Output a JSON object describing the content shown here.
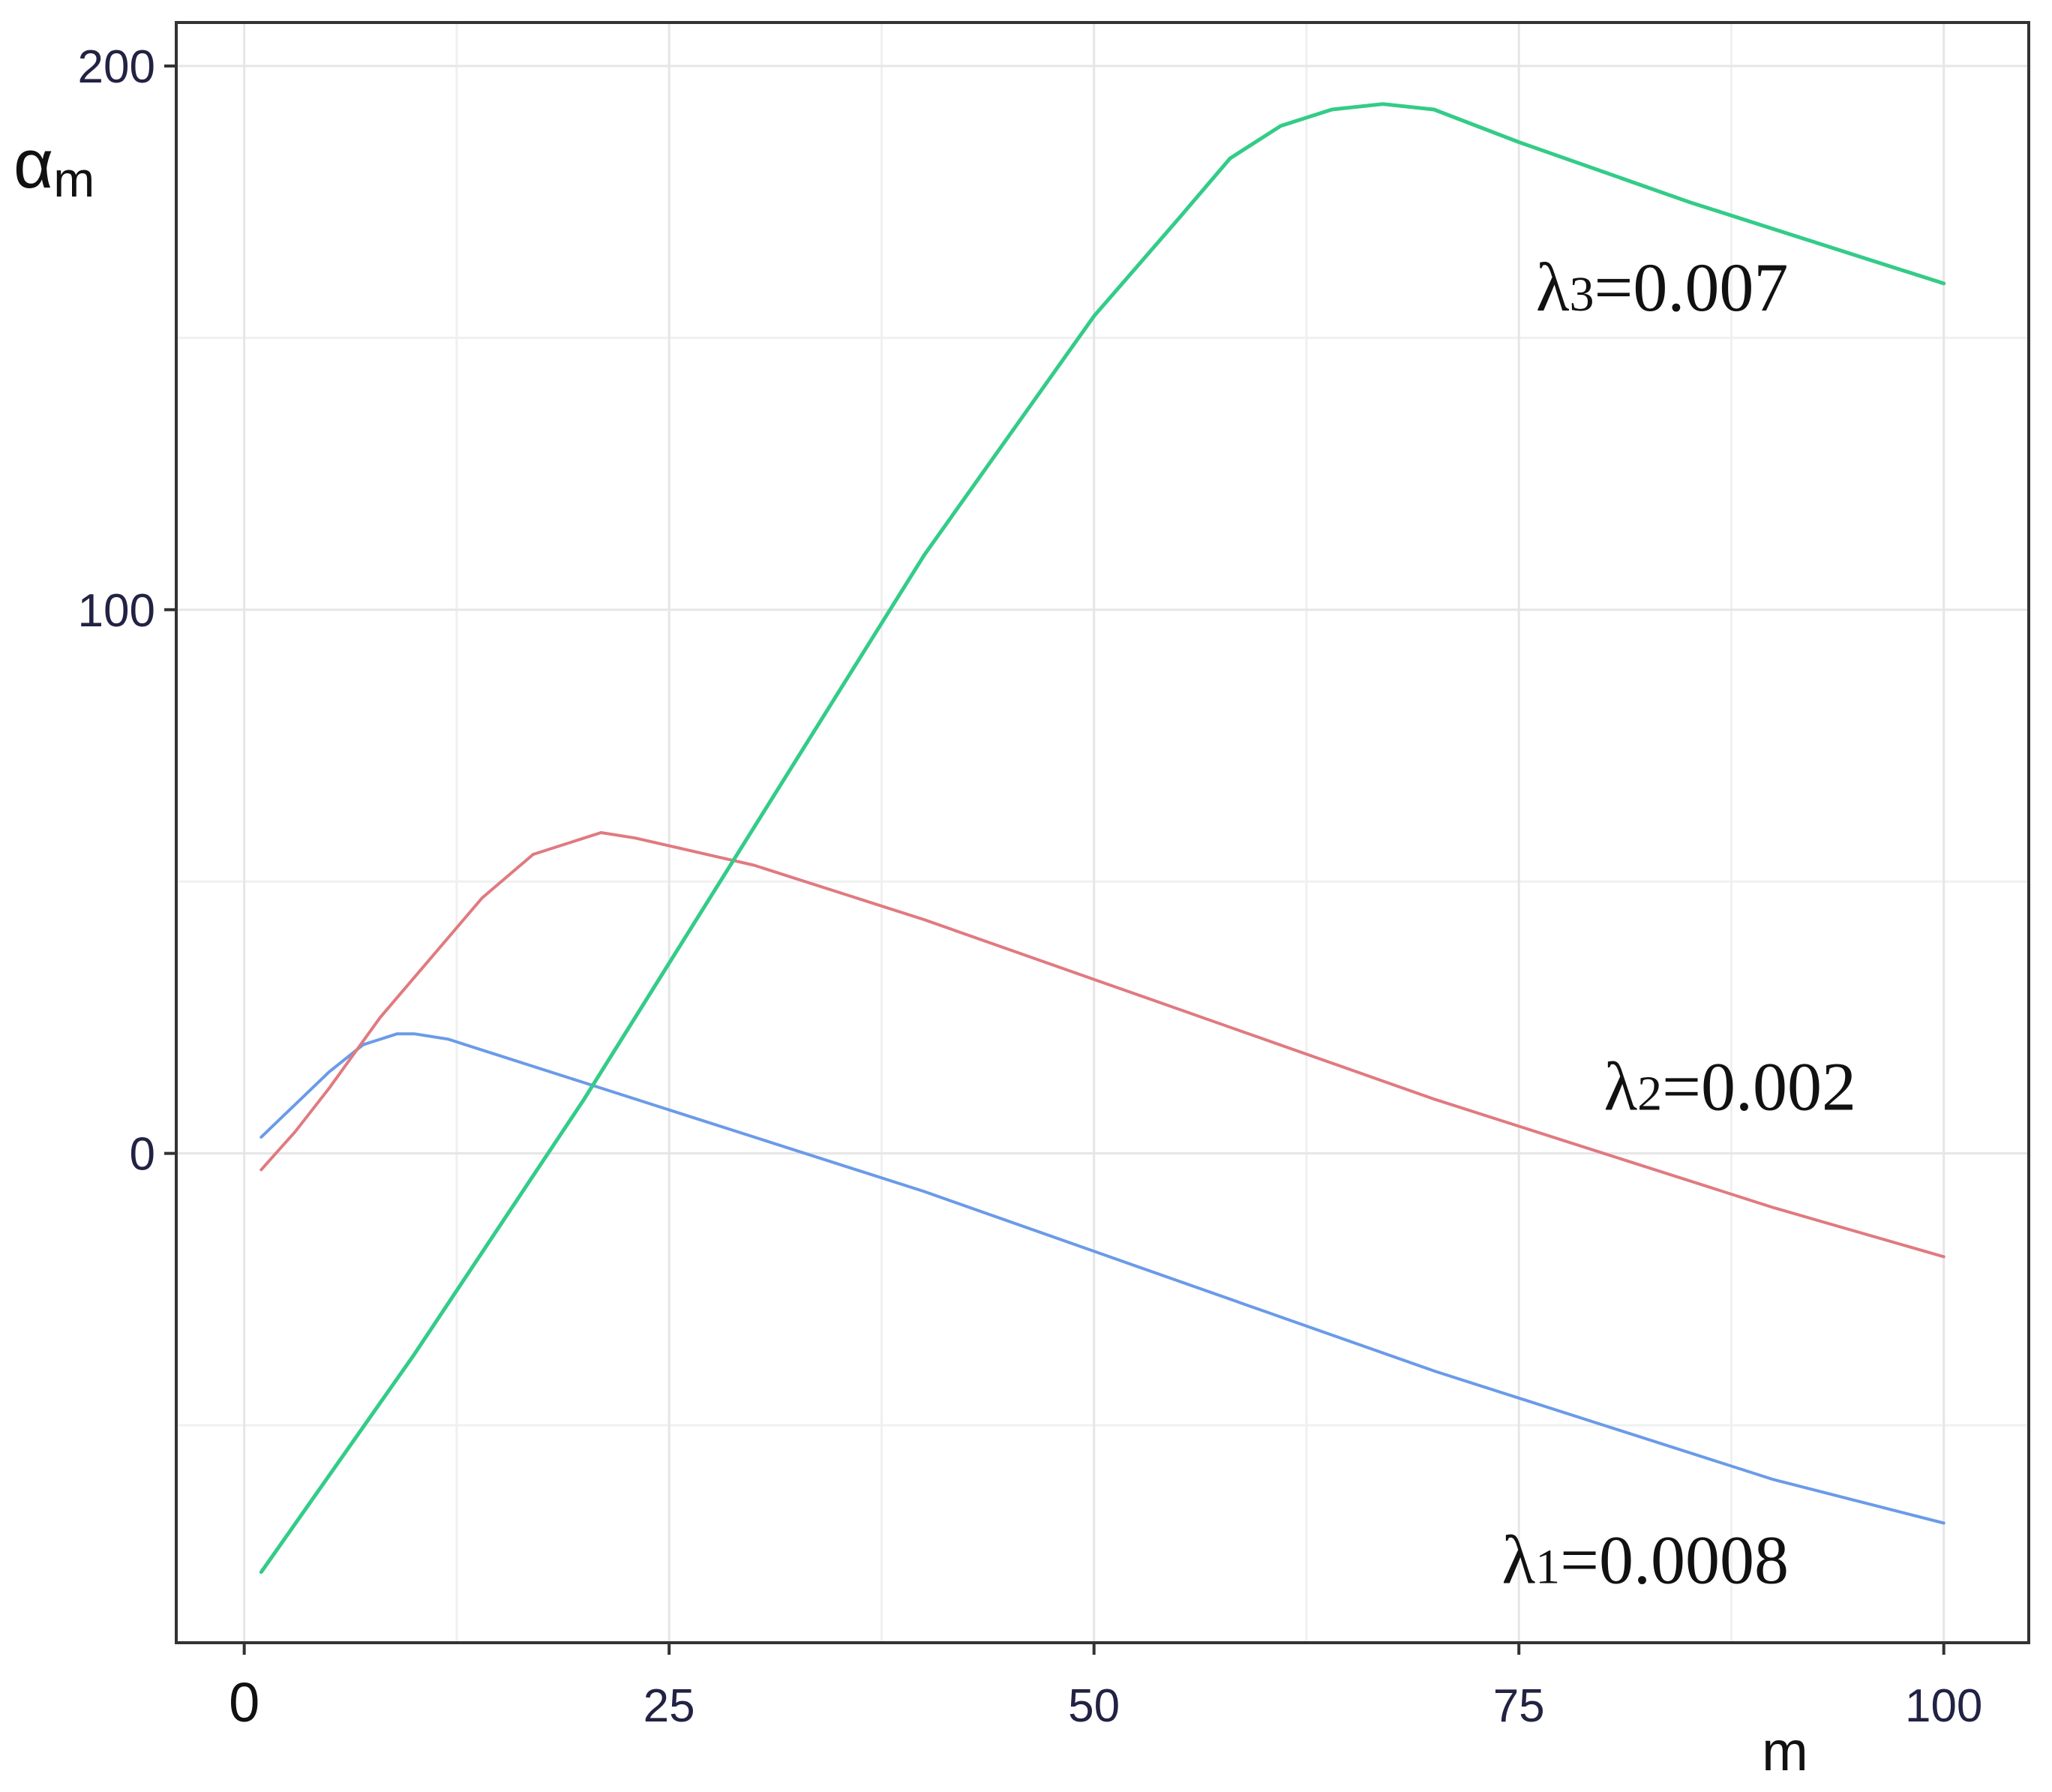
{
  "chart_data": {
    "type": "line",
    "title": "",
    "xlabel": "m",
    "ylabel": {
      "main": "α",
      "sub": "m"
    },
    "xlim": [
      -4,
      105
    ],
    "ylim": [
      -90,
      208
    ],
    "x_ticks": [
      {
        "value": 0,
        "label": "0"
      },
      {
        "value": 25,
        "label": "25"
      },
      {
        "value": 50,
        "label": "50"
      },
      {
        "value": 75,
        "label": "75"
      },
      {
        "value": 100,
        "label": "100"
      }
    ],
    "y_ticks": [
      {
        "value": 0,
        "label": "0"
      },
      {
        "value": 100,
        "label": "100"
      },
      {
        "value": 200,
        "label": "200"
      }
    ],
    "y_minor_grid": [
      -50,
      50,
      150
    ],
    "x_minor_grid": [
      12.5,
      37.5,
      62.5,
      87.5
    ],
    "grid": true,
    "legend": "none",
    "series": [
      {
        "color": "#6a9be8",
        "points": [
          [
            1,
            3
          ],
          [
            3,
            9
          ],
          [
            5,
            15
          ],
          [
            7,
            20
          ],
          [
            9,
            22
          ],
          [
            10,
            22
          ],
          [
            12,
            21
          ],
          [
            20,
            13
          ],
          [
            30,
            3
          ],
          [
            40,
            -7
          ],
          [
            50,
            -18
          ],
          [
            60,
            -29
          ],
          [
            70,
            -40
          ],
          [
            80,
            -50
          ],
          [
            90,
            -60
          ],
          [
            100,
            -68
          ]
        ]
      },
      {
        "color": "#e07a80",
        "points": [
          [
            1,
            -3
          ],
          [
            3,
            4
          ],
          [
            5,
            12
          ],
          [
            8,
            25
          ],
          [
            11,
            36
          ],
          [
            14,
            47
          ],
          [
            17,
            55
          ],
          [
            20,
            58
          ],
          [
            21,
            59
          ],
          [
            23,
            58
          ],
          [
            30,
            53
          ],
          [
            40,
            43
          ],
          [
            50,
            32
          ],
          [
            60,
            21
          ],
          [
            70,
            10
          ],
          [
            80,
            0
          ],
          [
            90,
            -10
          ],
          [
            100,
            -19
          ]
        ]
      },
      {
        "color": "#33cc88",
        "points": [
          [
            1,
            -77
          ],
          [
            10,
            -37
          ],
          [
            20,
            10
          ],
          [
            30,
            60
          ],
          [
            40,
            110
          ],
          [
            50,
            154
          ],
          [
            55,
            172
          ],
          [
            58,
            183
          ],
          [
            61,
            189
          ],
          [
            64,
            192
          ],
          [
            67,
            193
          ],
          [
            70,
            192
          ],
          [
            75,
            186
          ],
          [
            85,
            175
          ],
          [
            95,
            165
          ],
          [
            100,
            160
          ]
        ]
      }
    ],
    "annotations": [
      {
        "main": "λ",
        "sub": "3",
        "rest": "=0.007",
        "x": 76,
        "y": 155
      },
      {
        "main": "λ",
        "sub": "2",
        "rest": "=0.002",
        "x": 80,
        "y": 8
      },
      {
        "main": "λ",
        "sub": "1",
        "rest": "=0.0008",
        "x": 74,
        "y": -79
      }
    ]
  }
}
